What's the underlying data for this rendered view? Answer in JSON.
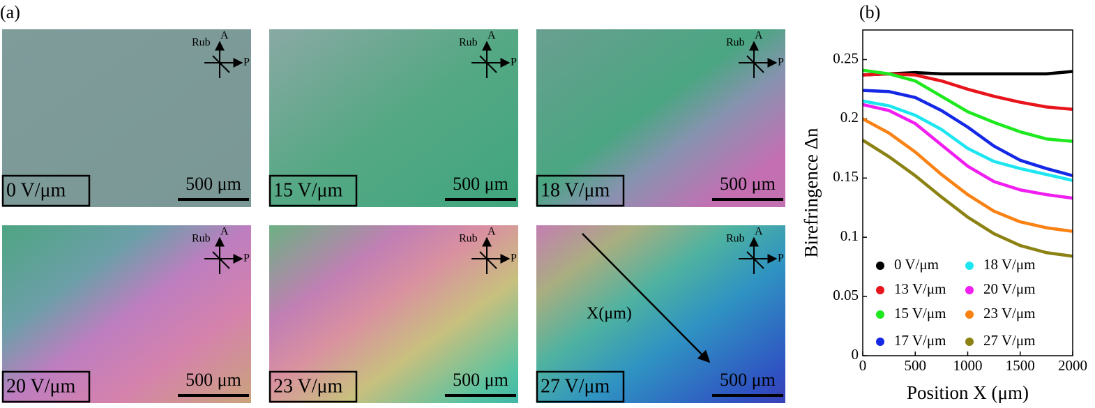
{
  "panel_a": {
    "label": "(a)",
    "polarizer": {
      "rub": "Rub",
      "analyzer": "A",
      "polarizer": "P"
    },
    "images": [
      {
        "field": "0 V/μm",
        "scale": "500 μm"
      },
      {
        "field": "15 V/μm",
        "scale": "500 μm"
      },
      {
        "field": "18 V/μm",
        "scale": "500 μm"
      },
      {
        "field": "20 V/μm",
        "scale": "500 μm"
      },
      {
        "field": "23 V/μm",
        "scale": "500 μm"
      },
      {
        "field": "27 V/μm",
        "scale": "500 μm"
      }
    ],
    "arrow_label": "X(μm)"
  },
  "chart_data": {
    "type": "line",
    "panel_label": "(b)",
    "xlabel": "Position X (μm)",
    "ylabel": "Birefringence Δn",
    "x": [
      0,
      250,
      500,
      750,
      1000,
      1250,
      1500,
      1750,
      2000
    ],
    "series": [
      {
        "name": "0 V/μm",
        "color": "#000000",
        "values": [
          0.237,
          0.238,
          0.239,
          0.238,
          0.238,
          0.238,
          0.238,
          0.238,
          0.24
        ]
      },
      {
        "name": "13 V/μm",
        "color": "#e8141c",
        "values": [
          0.237,
          0.238,
          0.237,
          0.232,
          0.225,
          0.219,
          0.214,
          0.21,
          0.208
        ]
      },
      {
        "name": "15 V/μm",
        "color": "#1ee81e",
        "values": [
          0.241,
          0.238,
          0.232,
          0.219,
          0.206,
          0.197,
          0.189,
          0.183,
          0.181
        ]
      },
      {
        "name": "17 V/μm",
        "color": "#1428e6",
        "values": [
          0.224,
          0.223,
          0.218,
          0.207,
          0.193,
          0.177,
          0.165,
          0.158,
          0.152
        ]
      },
      {
        "name": "18 V/μm",
        "color": "#1ee6f0",
        "values": [
          0.215,
          0.211,
          0.203,
          0.191,
          0.175,
          0.164,
          0.158,
          0.153,
          0.148
        ]
      },
      {
        "name": "20 V/μm",
        "color": "#f01ef0",
        "values": [
          0.212,
          0.207,
          0.196,
          0.178,
          0.16,
          0.147,
          0.14,
          0.136,
          0.133
        ]
      },
      {
        "name": "23 V/μm",
        "color": "#fa8214",
        "values": [
          0.2,
          0.188,
          0.172,
          0.153,
          0.136,
          0.122,
          0.113,
          0.108,
          0.105
        ]
      },
      {
        "name": "27 V/μm",
        "color": "#8c8214",
        "values": [
          0.182,
          0.168,
          0.152,
          0.134,
          0.117,
          0.103,
          0.093,
          0.087,
          0.084
        ]
      }
    ],
    "xlim": [
      0,
      2000
    ],
    "xticks": [
      0,
      500,
      1000,
      1500,
      2000
    ],
    "ylim": [
      0,
      0.275
    ],
    "yticks": [
      0,
      0.05,
      0.1,
      0.15,
      0.2,
      0.25
    ],
    "legend": "lower-left"
  }
}
